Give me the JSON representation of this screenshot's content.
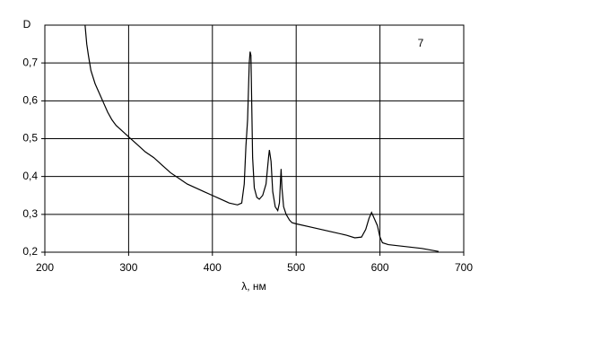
{
  "chart_data": {
    "type": "line",
    "y_label": "D",
    "x_label": "λ, нм",
    "annotation": "7",
    "xlim": [
      200,
      700
    ],
    "xticks": [
      200,
      300,
      400,
      500,
      600,
      700
    ],
    "ylim": [
      0.2,
      0.8
    ],
    "yticks": [
      {
        "value": 0.2,
        "label": "0,2"
      },
      {
        "value": 0.3,
        "label": "0,3"
      },
      {
        "value": 0.4,
        "label": "0,4"
      },
      {
        "value": 0.5,
        "label": "0,5"
      },
      {
        "value": 0.6,
        "label": "0,6"
      },
      {
        "value": 0.7,
        "label": "0,7"
      }
    ],
    "grid": true,
    "x": [
      248,
      250,
      252,
      255,
      260,
      265,
      270,
      275,
      280,
      285,
      290,
      295,
      300,
      310,
      320,
      330,
      340,
      350,
      360,
      370,
      380,
      390,
      400,
      410,
      420,
      430,
      435,
      438,
      440,
      442,
      444,
      445,
      446,
      448,
      450,
      453,
      456,
      460,
      464,
      467,
      468,
      470,
      472,
      475,
      478,
      480,
      482,
      483,
      485,
      488,
      492,
      495,
      500,
      520,
      540,
      560,
      570,
      578,
      583,
      587,
      590,
      593,
      597,
      600,
      603,
      610,
      630,
      650,
      670
    ],
    "series": [
      {
        "color": "#000000",
        "values": [
          0.8,
          0.75,
          0.72,
          0.68,
          0.645,
          0.62,
          0.595,
          0.57,
          0.55,
          0.535,
          0.525,
          0.515,
          0.505,
          0.485,
          0.465,
          0.45,
          0.43,
          0.41,
          0.395,
          0.38,
          0.37,
          0.36,
          0.35,
          0.34,
          0.33,
          0.325,
          0.33,
          0.38,
          0.48,
          0.55,
          0.7,
          0.73,
          0.72,
          0.45,
          0.37,
          0.345,
          0.34,
          0.35,
          0.38,
          0.45,
          0.47,
          0.44,
          0.36,
          0.32,
          0.31,
          0.33,
          0.42,
          0.37,
          0.32,
          0.3,
          0.285,
          0.278,
          0.275,
          0.265,
          0.255,
          0.245,
          0.238,
          0.24,
          0.26,
          0.29,
          0.305,
          0.29,
          0.27,
          0.24,
          0.225,
          0.22,
          0.215,
          0.21,
          0.202
        ]
      }
    ]
  }
}
